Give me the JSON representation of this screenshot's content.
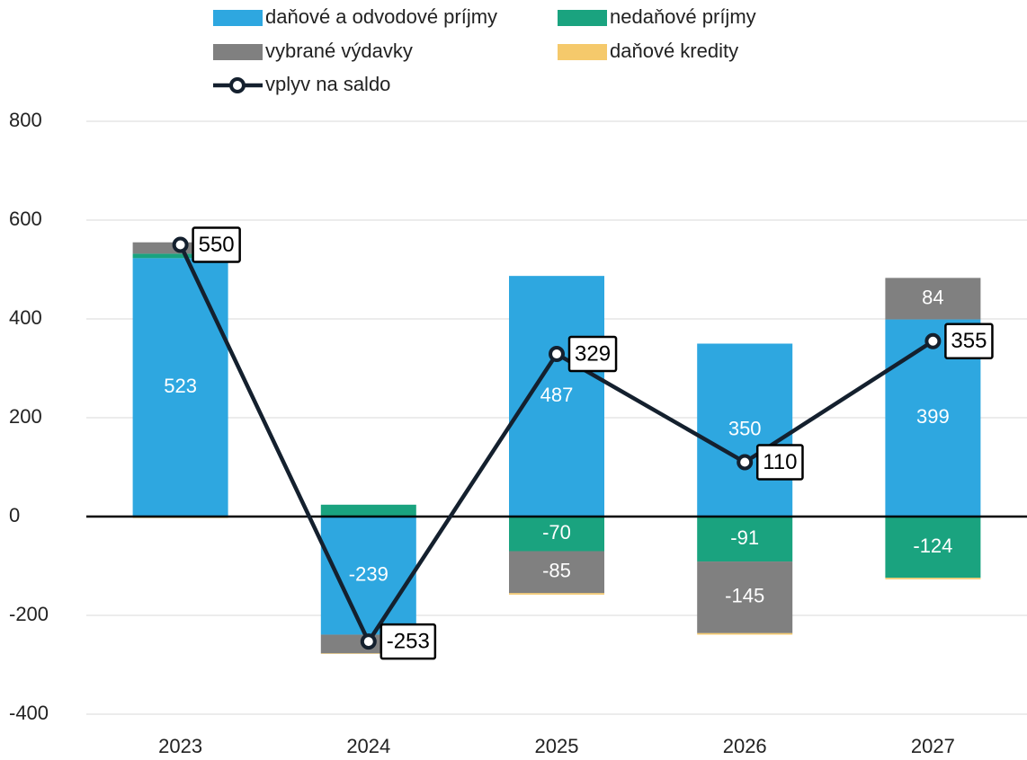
{
  "chart_data": {
    "type": "bar",
    "categories": [
      "2023",
      "2024",
      "2025",
      "2026",
      "2027"
    ],
    "series": [
      {
        "name": "daňové a odvodové príjmy",
        "color": "#2ea7e0",
        "values": [
          523,
          -239,
          487,
          350,
          399
        ],
        "value_labels": [
          "523",
          "-239",
          "487",
          "350",
          "399"
        ]
      },
      {
        "name": "nedaňové príjmy",
        "color": "#1aa37f",
        "values": [
          9,
          24,
          -70,
          -91,
          -124
        ],
        "value_labels": [
          null,
          null,
          "-70",
          "-91",
          "-124"
        ]
      },
      {
        "name": "vybrané výdavky",
        "color": "#808080",
        "values": [
          23,
          -38,
          -85,
          -145,
          84
        ],
        "value_labels": [
          null,
          null,
          "-85",
          "-145",
          "84"
        ]
      },
      {
        "name": "daňové kredity",
        "color": "#f5c96b",
        "values": [
          -3,
          -1,
          -3,
          -3,
          -3
        ],
        "value_labels": [
          null,
          null,
          null,
          null,
          null
        ]
      },
      {
        "name": "vplyv na saldo",
        "type": "line",
        "color": "#14202e",
        "values": [
          550,
          -253,
          329,
          110,
          355
        ]
      }
    ],
    "ylim": [
      -400,
      800
    ],
    "yticks": [
      -400,
      -200,
      0,
      200,
      400,
      600,
      800
    ],
    "grid": true
  }
}
